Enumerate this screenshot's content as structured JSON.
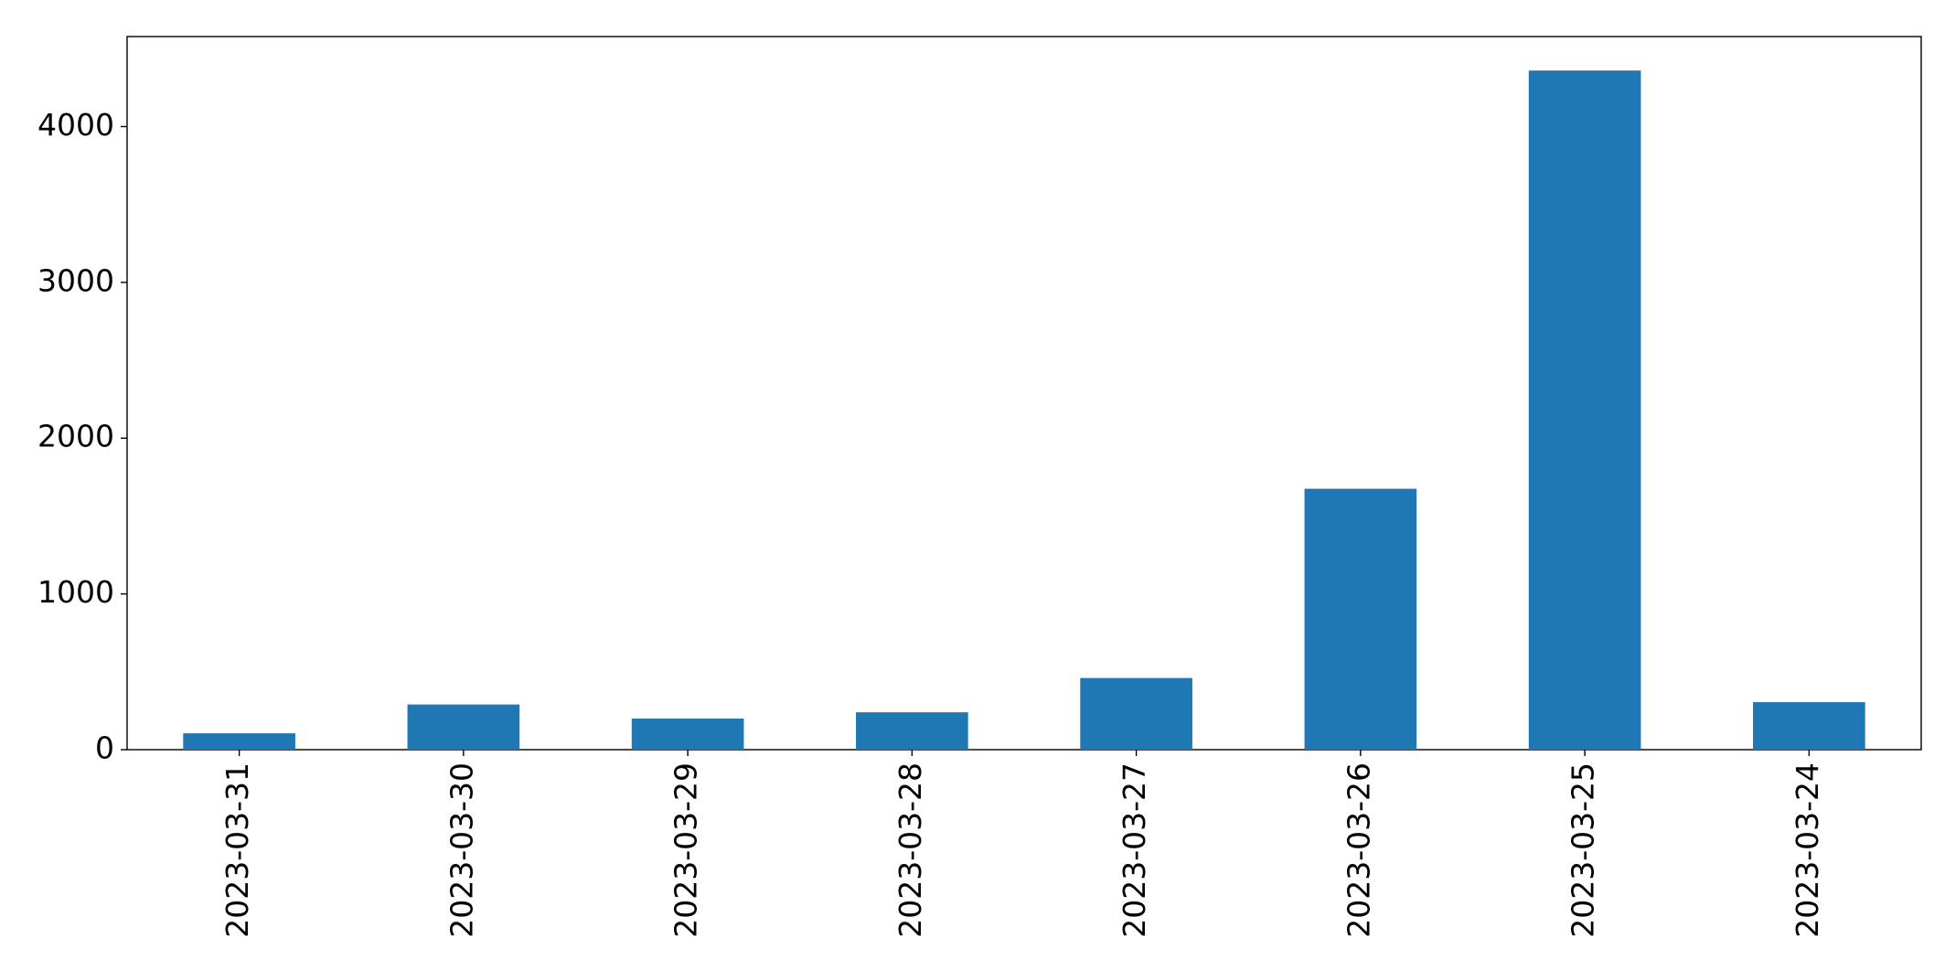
{
  "chart_data": {
    "type": "bar",
    "categories": [
      "2023-03-31",
      "2023-03-30",
      "2023-03-29",
      "2023-03-28",
      "2023-03-27",
      "2023-03-26",
      "2023-03-25",
      "2023-03-24"
    ],
    "values": [
      105,
      290,
      200,
      240,
      460,
      1675,
      4360,
      305
    ],
    "color": "#1f77b4",
    "ylim": [
      0,
      4578
    ],
    "yticks": [
      0,
      1000,
      2000,
      3000,
      4000
    ],
    "grid": false
  }
}
